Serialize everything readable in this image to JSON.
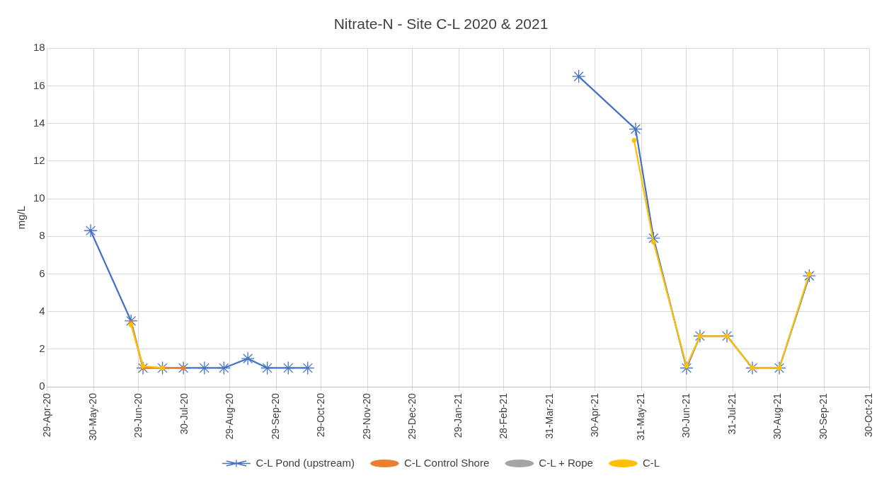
{
  "chart_data": {
    "type": "line",
    "title": "Nitrate-N - Site C-L 2020 & 2021",
    "ylabel": "mg/L",
    "xlim": [
      "2020-04-29",
      "2021-10-30"
    ],
    "xticks": [
      {
        "value": "2020-04-29",
        "label": "29-Apr-20"
      },
      {
        "value": "2020-05-30",
        "label": "30-May-20"
      },
      {
        "value": "2020-06-29",
        "label": "29-Jun-20"
      },
      {
        "value": "2020-07-30",
        "label": "30-Jul-20"
      },
      {
        "value": "2020-08-29",
        "label": "29-Aug-20"
      },
      {
        "value": "2020-09-29",
        "label": "29-Sep-20"
      },
      {
        "value": "2020-10-29",
        "label": "29-Oct-20"
      },
      {
        "value": "2020-11-29",
        "label": "29-Nov-20"
      },
      {
        "value": "2020-12-29",
        "label": "29-Dec-20"
      },
      {
        "value": "2021-01-29",
        "label": "29-Jan-21"
      },
      {
        "value": "2021-02-28",
        "label": "28-Feb-21"
      },
      {
        "value": "2021-03-31",
        "label": "31-Mar-21"
      },
      {
        "value": "2021-04-30",
        "label": "30-Apr-21"
      },
      {
        "value": "2021-05-31",
        "label": "31-May-21"
      },
      {
        "value": "2021-06-30",
        "label": "30-Jun-21"
      },
      {
        "value": "2021-07-31",
        "label": "31-Jul-21"
      },
      {
        "value": "2021-08-30",
        "label": "30-Aug-21"
      },
      {
        "value": "2021-09-30",
        "label": "30-Sep-21"
      },
      {
        "value": "2021-10-30",
        "label": "30-Oct-21"
      }
    ],
    "ylim": [
      0,
      18
    ],
    "yticks": [
      0,
      2,
      4,
      6,
      8,
      10,
      12,
      14,
      16,
      18
    ],
    "grid": true,
    "legend": "bottom",
    "series": [
      {
        "name": "C-L Pond (upstream)",
        "color": "#4472c4",
        "marker": "cross",
        "x": [
          "2020-05-28",
          "2020-06-24",
          "2020-07-02",
          "2020-07-15",
          "2020-07-29",
          "2020-08-12",
          "2020-08-25",
          "2020-09-10",
          "2020-09-23",
          "2020-10-07",
          "2020-10-20",
          "2021-04-19",
          "2021-05-27",
          "2021-06-08",
          "2021-06-30",
          "2021-07-09",
          "2021-07-27",
          "2021-08-13",
          "2021-08-31",
          "2021-09-20"
        ],
        "values": [
          8.3,
          3.5,
          1.0,
          1.0,
          1.0,
          1.0,
          1.0,
          1.5,
          1.0,
          1.0,
          1.0,
          16.5,
          13.7,
          7.9,
          1.0,
          2.7,
          2.7,
          1.0,
          1.0,
          5.9
        ]
      },
      {
        "name": "C-L Control Shore",
        "color": "#ed7d31",
        "marker": "circle",
        "x": [
          "2020-06-24",
          "2020-07-02",
          "2020-07-15",
          "2020-07-29"
        ],
        "values": [
          3.4,
          1.0,
          1.0,
          1.0
        ]
      },
      {
        "name": "C-L + Rope",
        "color": "#a5a5a5",
        "marker": "circle"
      },
      {
        "name": "C-L",
        "color": "#ffc000",
        "marker": "circle",
        "x": [
          "2020-06-24",
          "2020-07-02",
          "2020-07-15",
          "2021-05-26",
          "2021-06-08",
          "2021-06-30",
          "2021-07-09",
          "2021-07-27",
          "2021-08-13",
          "2021-08-31",
          "2021-09-20"
        ],
        "values": [
          3.3,
          1.1,
          1.0,
          13.1,
          7.7,
          1.1,
          2.7,
          2.7,
          1.0,
          1.0,
          6.0
        ]
      }
    ]
  }
}
